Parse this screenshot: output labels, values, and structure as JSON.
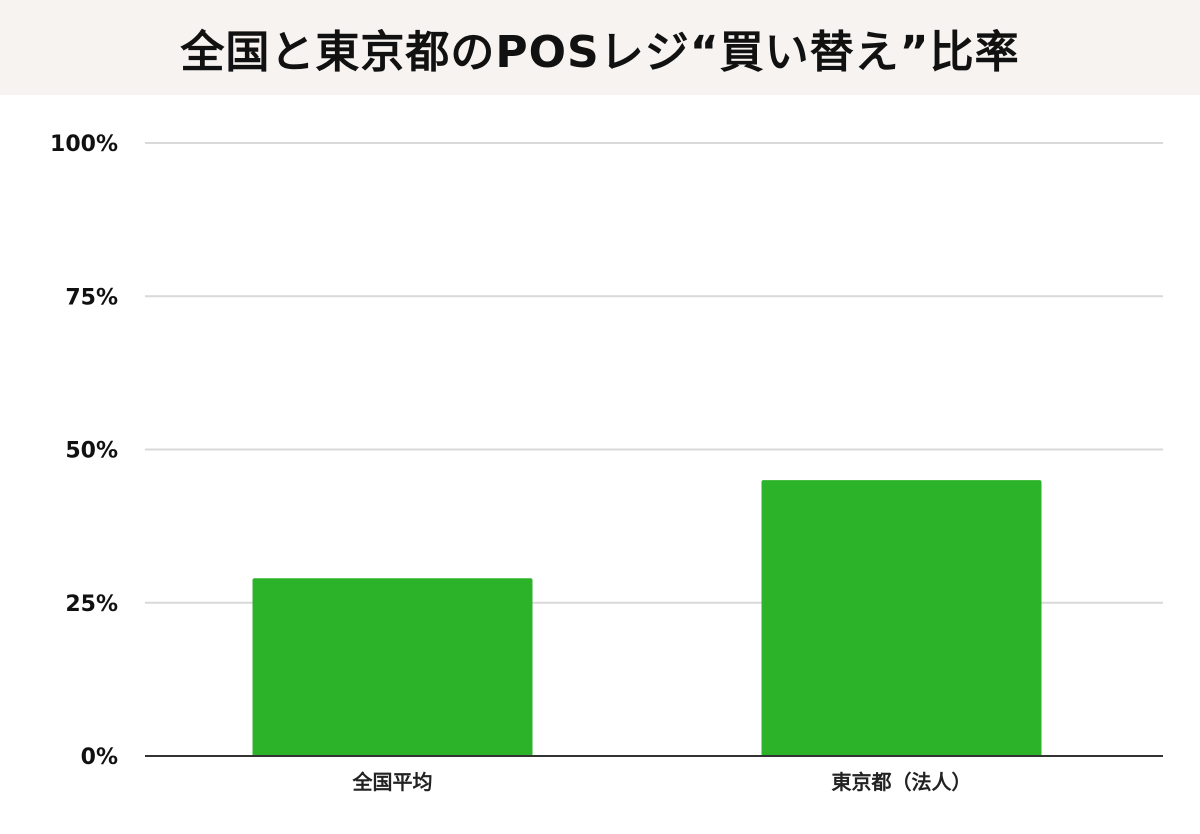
{
  "chart_data": {
    "type": "bar",
    "title": "全国と東京都のPOSレジ“買い替え”比率",
    "categories": [
      "全国平均",
      "東京都（法人）"
    ],
    "values": [
      29,
      45
    ],
    "ylim": [
      0,
      100
    ],
    "yticks": [
      0,
      25,
      50,
      75,
      100
    ],
    "ytick_labels": [
      "0%",
      "25%",
      "50%",
      "75%",
      "100%"
    ],
    "xlabel": "",
    "ylabel": "",
    "grid": true,
    "bar_color": "#2db329",
    "grid_color": "#d9d9d9",
    "axis_color": "#333333"
  }
}
